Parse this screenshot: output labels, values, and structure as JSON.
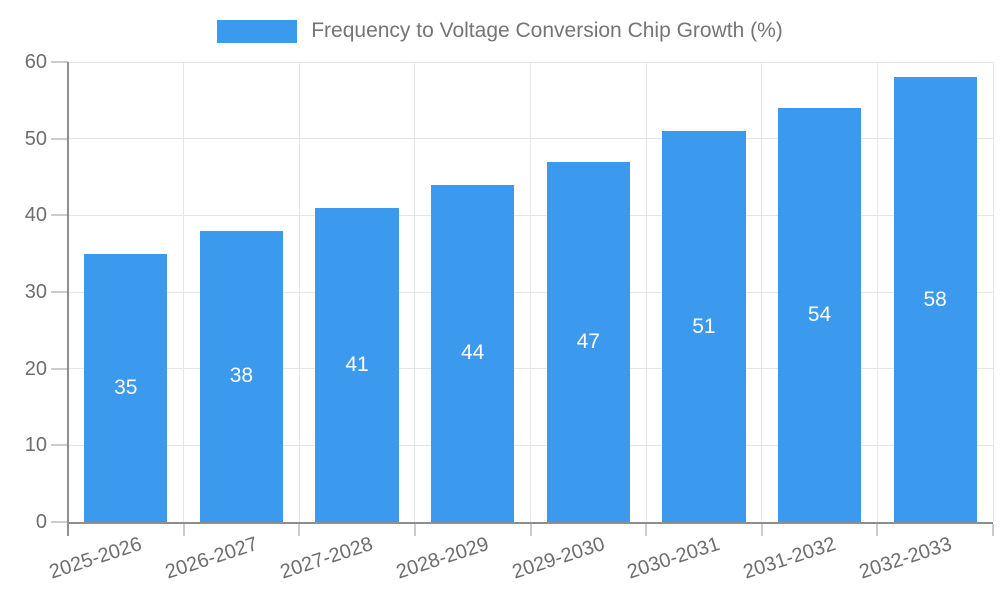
{
  "chart_data": {
    "type": "bar",
    "title": "Frequency to Voltage Conversion Chip Growth (%)",
    "legend": {
      "label": "Frequency to Voltage Conversion Chip Growth (%)",
      "position": "top"
    },
    "categories": [
      "2025-2026",
      "2026-2027",
      "2027-2028",
      "2028-2029",
      "2029-2030",
      "2030-2031",
      "2031-2032",
      "2032-2033"
    ],
    "values": [
      35,
      38,
      41,
      44,
      47,
      51,
      54,
      58
    ],
    "xlabel": "",
    "ylabel": "",
    "ylim": [
      0,
      60
    ],
    "yticks": [
      0,
      10,
      20,
      30,
      40,
      50,
      60
    ],
    "grid": true,
    "value_labels": "inside-center",
    "colors": {
      "bar": "#3B99EE",
      "value_label": "#FFFFFF",
      "grid_line": "#E6E6E6",
      "axis_line": "#8E8E8E",
      "tick_mark": "#CCCCCC",
      "axis_text": "#6E6E6E",
      "legend_text": "#757575"
    }
  }
}
